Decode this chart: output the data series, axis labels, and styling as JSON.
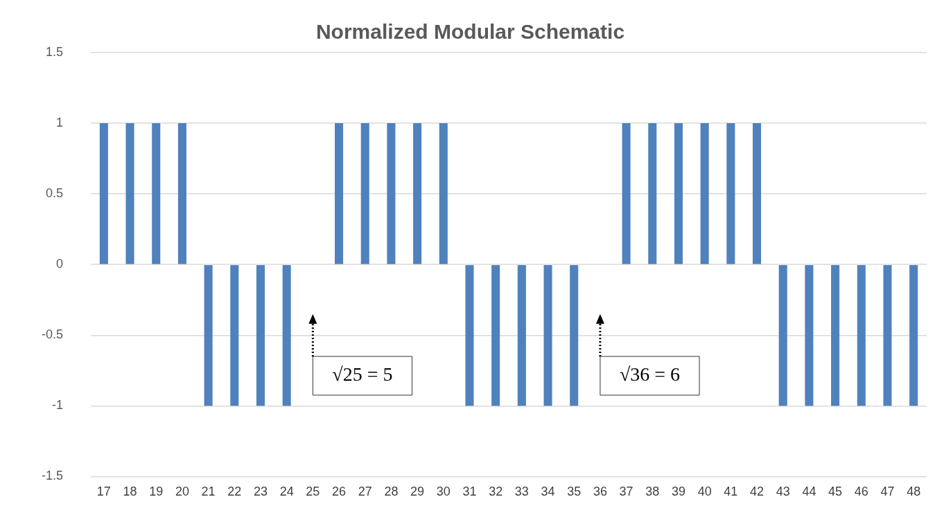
{
  "chart_data": {
    "type": "bar",
    "title": "Normalized Modular Schematic",
    "categories": [
      "17",
      "18",
      "19",
      "20",
      "21",
      "22",
      "23",
      "24",
      "25",
      "26",
      "27",
      "28",
      "29",
      "30",
      "31",
      "32",
      "33",
      "34",
      "35",
      "36",
      "37",
      "38",
      "39",
      "40",
      "41",
      "42",
      "43",
      "44",
      "45",
      "46",
      "47",
      "48"
    ],
    "values": [
      1,
      1,
      1,
      1,
      -1,
      -1,
      -1,
      -1,
      0,
      1,
      1,
      1,
      1,
      1,
      -1,
      -1,
      -1,
      -1,
      -1,
      0,
      1,
      1,
      1,
      1,
      1,
      1,
      -1,
      -1,
      -1,
      -1,
      -1,
      -1
    ],
    "color": "#4f81bd",
    "ylim": [
      -1.5,
      1.5
    ],
    "yticks": [
      -1.5,
      -1,
      -0.5,
      0,
      0.5,
      1,
      1.5
    ],
    "grid": "y",
    "legend": false,
    "annotations": [
      "√25 = 5",
      "√36 = 6"
    ]
  }
}
